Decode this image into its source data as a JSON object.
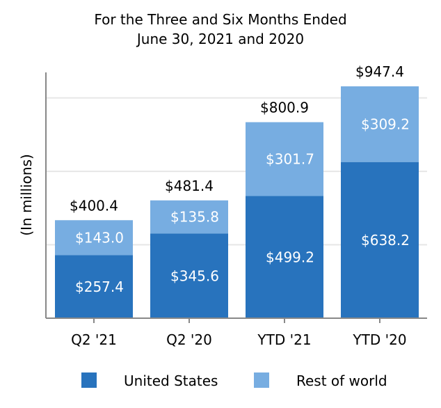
{
  "chart_data": {
    "type": "bar",
    "stacked": true,
    "title": [
      "For the Three and Six Months Ended",
      "June 30, 2021 and 2020"
    ],
    "ylabel": "(In millions)",
    "xlabel": "",
    "categories": [
      "Q2 '21",
      "Q2 '20",
      "YTD '21",
      "YTD '20"
    ],
    "series": [
      {
        "name": "United States",
        "color": "#2873bd",
        "values": [
          257.4,
          345.6,
          499.2,
          638.2
        ],
        "labels": [
          "$257.4",
          "$345.6",
          "$499.2",
          "$638.2"
        ]
      },
      {
        "name": "Rest of world",
        "color": "#77ade1",
        "values": [
          143.0,
          135.8,
          301.7,
          309.2
        ],
        "labels": [
          "$143.0",
          "$135.8",
          "$301.7",
          "$309.2"
        ]
      }
    ],
    "totals": [
      400.4,
      481.4,
      800.9,
      947.4
    ],
    "total_labels": [
      "$400.4",
      "$481.4",
      "$800.9",
      "$947.4"
    ],
    "ylim": [
      0,
      1000
    ],
    "gridlines": [
      300,
      600,
      900
    ],
    "grid": true,
    "legend": "bottom",
    "colors": {
      "axis": "#888888",
      "grid": "#e6e6e6",
      "text": "#000000",
      "inner_label": "#ffffff"
    }
  }
}
